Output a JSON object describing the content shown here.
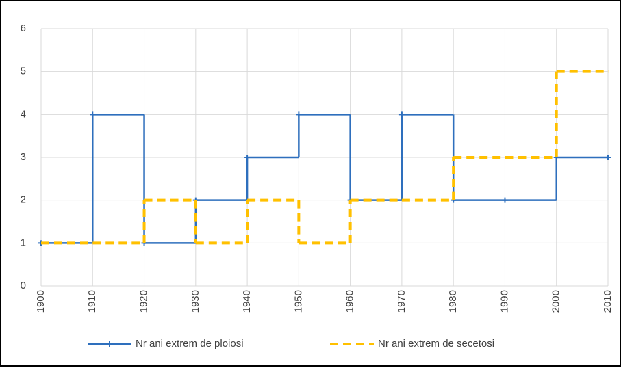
{
  "chart_data": {
    "type": "line",
    "step": "post",
    "x": [
      1900,
      1910,
      1920,
      1930,
      1940,
      1950,
      1960,
      1970,
      1980,
      1990,
      2000,
      2010
    ],
    "series": [
      {
        "name": "Nr ani extrem de ploiosi",
        "color": "#2e6fbd",
        "dashed": false,
        "markers": true,
        "values": [
          1,
          4,
          1,
          2,
          3,
          4,
          2,
          4,
          2,
          2,
          3,
          3
        ]
      },
      {
        "name": "Nr ani extrem de secetosi",
        "color": "#ffc000",
        "dashed": true,
        "markers": false,
        "values": [
          1,
          1,
          2,
          1,
          2,
          1,
          2,
          2,
          3,
          3,
          5,
          5
        ]
      }
    ],
    "xlim": [
      1900,
      2010
    ],
    "xticks": [
      1900,
      1910,
      1920,
      1930,
      1940,
      1950,
      1960,
      1970,
      1980,
      1990,
      2000,
      2010
    ],
    "ylim": [
      0,
      6
    ],
    "yticks": [
      0,
      1,
      2,
      3,
      4,
      5,
      6
    ],
    "grid": true,
    "legend": "bottom"
  }
}
